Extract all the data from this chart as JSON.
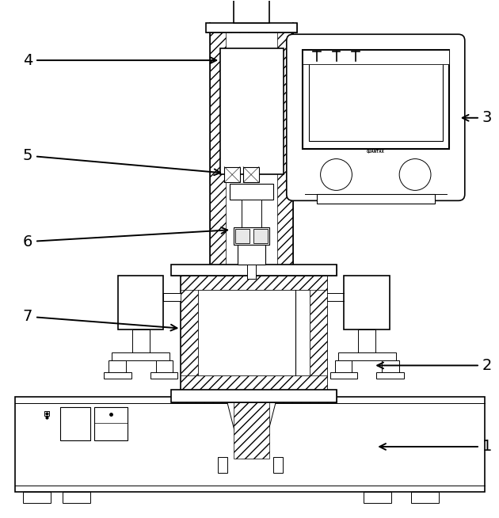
{
  "fig_width": 6.3,
  "fig_height": 6.54,
  "dpi": 100,
  "bg_color": "#ffffff",
  "line_color": "#000000"
}
